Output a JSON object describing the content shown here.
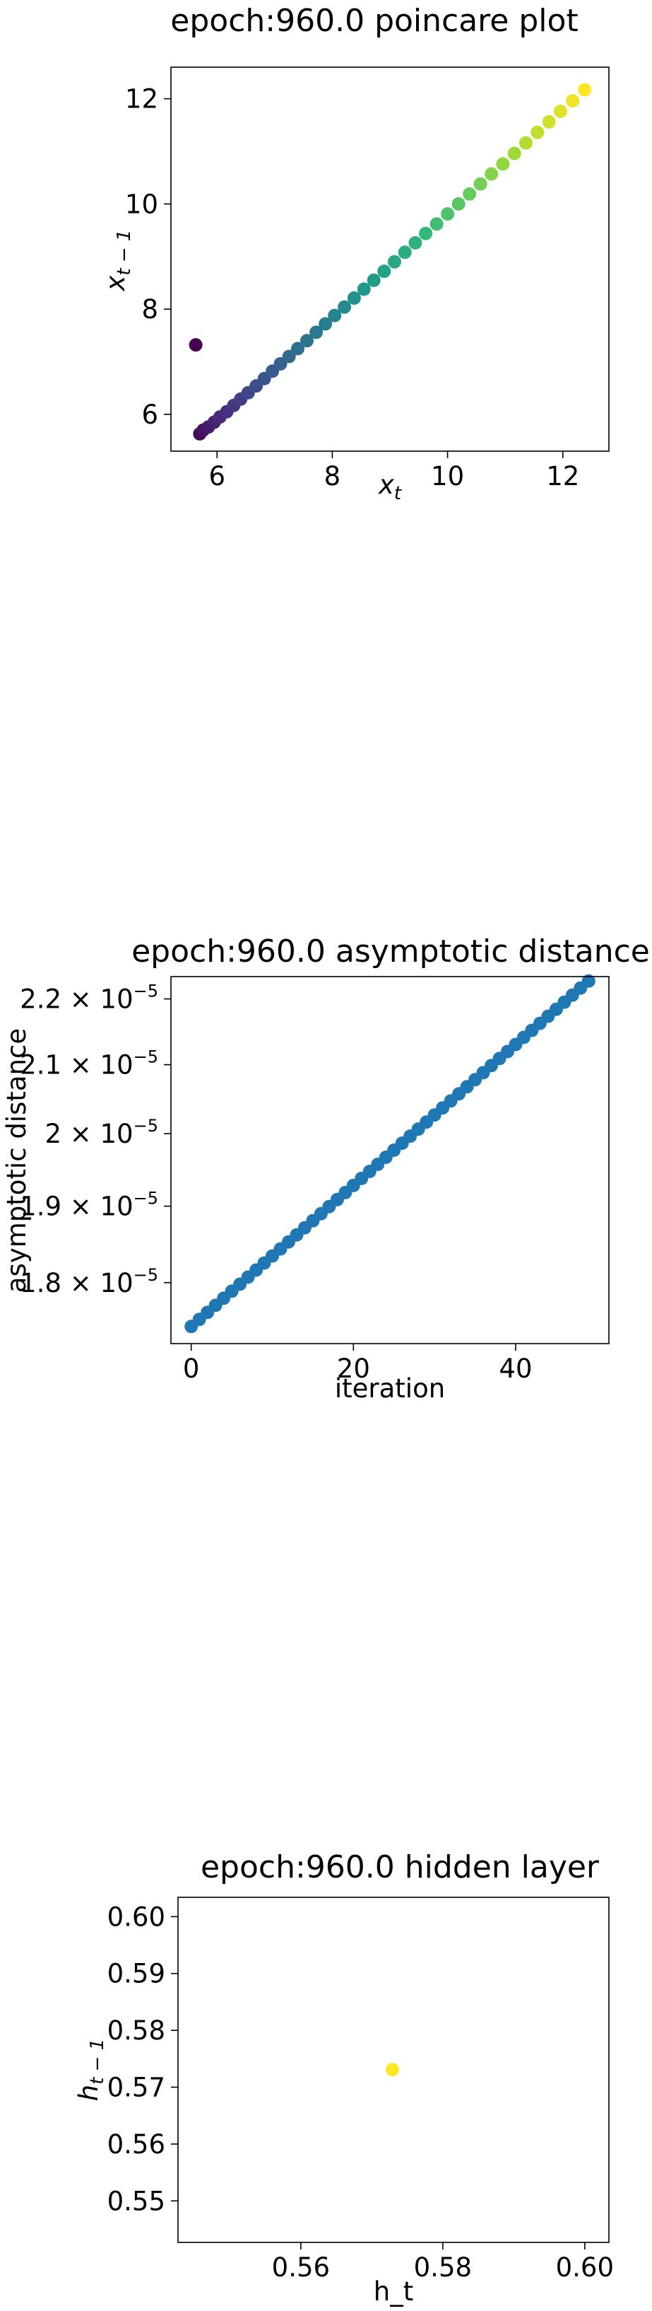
{
  "chart_data": [
    {
      "type": "scatter",
      "title": "epoch:960.0 poincare plot",
      "xlabel": "x_t",
      "ylabel": "x_{t-1}",
      "xlim": [
        5.2,
        12.8
      ],
      "ylim": [
        5.3,
        12.6
      ],
      "xticks": [
        6,
        8,
        10,
        12
      ],
      "yticks": [
        6,
        8,
        10,
        12
      ],
      "colormap": "viridis",
      "grid": false,
      "x": [
        5.63,
        5.7,
        5.76,
        5.85,
        5.95,
        6.05,
        6.17,
        6.29,
        6.41,
        6.54,
        6.68,
        6.82,
        6.96,
        7.1,
        7.25,
        7.4,
        7.56,
        7.72,
        7.88,
        8.04,
        8.21,
        8.38,
        8.55,
        8.72,
        8.9,
        9.08,
        9.26,
        9.44,
        9.62,
        9.81,
        10.0,
        10.19,
        10.38,
        10.57,
        10.76,
        10.96,
        11.16,
        11.36,
        11.56,
        11.76,
        11.96,
        12.17,
        12.38
      ],
      "y": [
        7.32,
        5.63,
        5.7,
        5.76,
        5.85,
        5.95,
        6.05,
        6.17,
        6.29,
        6.41,
        6.54,
        6.68,
        6.82,
        6.96,
        7.1,
        7.25,
        7.4,
        7.56,
        7.72,
        7.88,
        8.04,
        8.21,
        8.38,
        8.55,
        8.72,
        8.9,
        9.08,
        9.26,
        9.44,
        9.62,
        9.81,
        10.0,
        10.19,
        10.38,
        10.57,
        10.76,
        10.96,
        11.16,
        11.36,
        11.56,
        11.76,
        11.96,
        12.17
      ]
    },
    {
      "type": "scatter",
      "title": "epoch:960.0 asymptotic distance",
      "xlabel": "iteration",
      "ylabel": "asymptotic distance",
      "xlim": [
        -2.5,
        51.5
      ],
      "yscale": "log",
      "ylim": [
        1.724e-05,
        2.235e-05
      ],
      "xticks": [
        0,
        20,
        40
      ],
      "yticks": [
        1.8e-05,
        1.9e-05,
        2e-05,
        2.1e-05,
        2.2e-05
      ],
      "yticklabels": [
        {
          "mantissa": "1.8 × 10",
          "exponent": "−5"
        },
        {
          "mantissa": "1.9 × 10",
          "exponent": "−5"
        },
        {
          "mantissa": "2 × 10",
          "exponent": "−5"
        },
        {
          "mantissa": "2.1 × 10",
          "exponent": "−5"
        },
        {
          "mantissa": "2.2 × 10",
          "exponent": "−5"
        }
      ],
      "color": "#1f77b4",
      "grid": false,
      "x_start": 0,
      "x_count": 50,
      "y_first": 1.745e-05,
      "y_last": 2.228e-05
    },
    {
      "type": "scatter",
      "title": "epoch:960.0 hidden layer",
      "xlabel": "h_t",
      "ylabel": "h_{t-1}",
      "xlim": [
        0.5427,
        0.6034
      ],
      "ylim": [
        0.5427,
        0.6034
      ],
      "xticks": [
        0.56,
        0.58,
        0.6
      ],
      "yticks": [
        0.55,
        0.56,
        0.57,
        0.58,
        0.59,
        0.6
      ],
      "color": "#fde725",
      "grid": false,
      "x": [
        0.5729
      ],
      "y": [
        0.5731
      ]
    }
  ]
}
